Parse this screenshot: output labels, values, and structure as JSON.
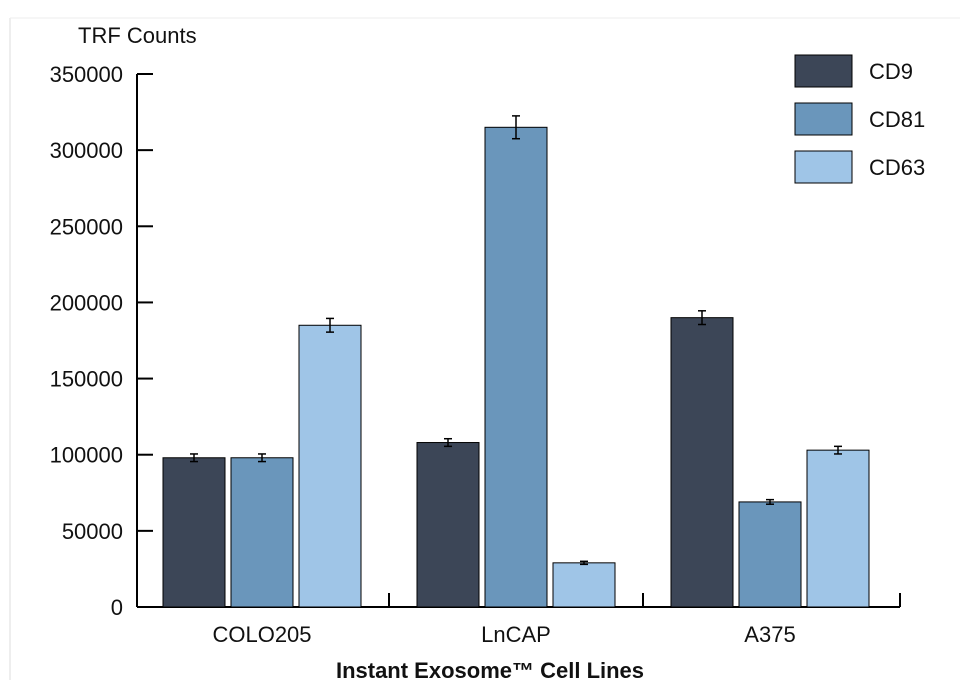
{
  "chart_data": {
    "type": "bar",
    "title": "",
    "ylabel": "TRF Counts",
    "xlabel": "Instant Exosome™ Cell Lines",
    "categories": [
      "COLO205",
      "LnCAP",
      "A375"
    ],
    "ylim": [
      0,
      350000
    ],
    "yticks": [
      0,
      50000,
      100000,
      150000,
      200000,
      250000,
      300000,
      350000
    ],
    "yticks_labels": [
      "0",
      "50000",
      "100000",
      "150000",
      "200000",
      "250000",
      "300000",
      "350000"
    ],
    "grid": false,
    "legend_position": "top-right",
    "error_bars": true,
    "series": [
      {
        "name": "CD9",
        "color": "#3c4657",
        "values": [
          98000,
          108000,
          190000
        ],
        "errors": [
          2500,
          2500,
          4500
        ]
      },
      {
        "name": "CD81",
        "color": "#6a96bb",
        "values": [
          98000,
          315000,
          69000
        ],
        "errors": [
          2500,
          7500,
          1500
        ]
      },
      {
        "name": "CD63",
        "color": "#9fc5e7",
        "values": [
          185000,
          29000,
          103000
        ],
        "errors": [
          4500,
          1000,
          2500
        ]
      }
    ]
  }
}
